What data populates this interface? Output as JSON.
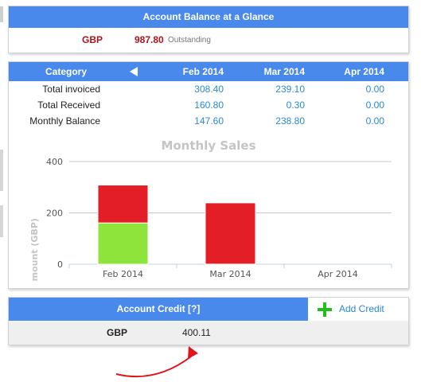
{
  "balance": {
    "title": "Account Balance at a Glance",
    "currency": "GBP",
    "amount": "987.80",
    "status": "Outstanding"
  },
  "category_table": {
    "header_label": "Category",
    "months": [
      "Feb 2014",
      "Mar 2014",
      "Apr 2014"
    ],
    "rows": [
      {
        "label": "Total invoiced",
        "values": [
          "308.40",
          "239.10",
          "0.00"
        ]
      },
      {
        "label": "Total Received",
        "values": [
          "160.80",
          "0.30",
          "0.00"
        ]
      },
      {
        "label": "Monthly Balance",
        "values": [
          "147.60",
          "238.80",
          "0.00"
        ]
      }
    ]
  },
  "chart_data": {
    "type": "bar",
    "stacked": true,
    "title": "Monthly Sales",
    "xlabel": "",
    "ylabel": "Amount (GBP)",
    "ylim": [
      0,
      400
    ],
    "yticks": [
      0,
      200,
      400
    ],
    "categories": [
      "Feb 2014",
      "Mar 2014",
      "Apr 2014"
    ],
    "series": [
      {
        "color": "#8fe43c",
        "values": [
          160.8,
          0.3,
          0
        ]
      },
      {
        "color": "#e41e26",
        "values": [
          147.6,
          238.8,
          0
        ]
      }
    ],
    "grid": true,
    "legend": "none"
  },
  "credit": {
    "title": "Account Credit",
    "help": "[?]",
    "add_label": "Add Credit",
    "currency": "GBP",
    "amount": "400.11"
  },
  "colors": {
    "accent": "#4a89ec",
    "link": "#2a88d8",
    "outstanding": "#b0141a",
    "add_icon": "#1fbf1f",
    "annotation_arrow": "#e0141a"
  }
}
